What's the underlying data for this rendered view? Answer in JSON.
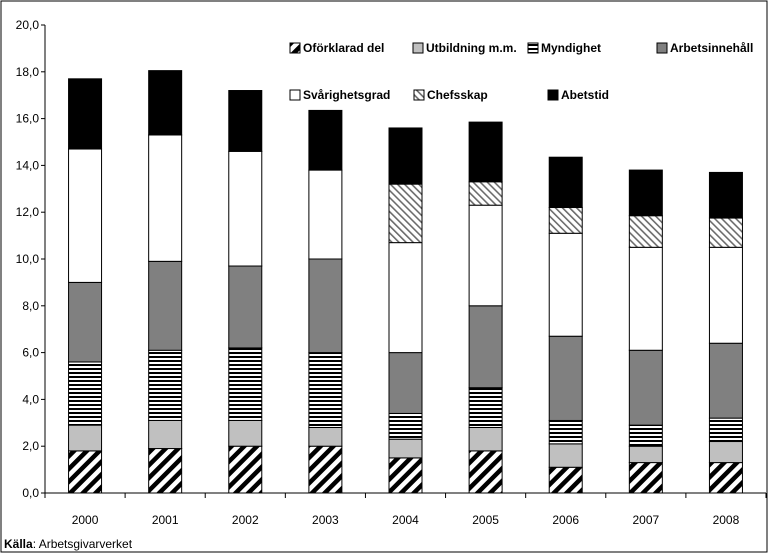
{
  "chart_data": {
    "type": "bar",
    "stacked": true,
    "categories": [
      "2000",
      "2001",
      "2002",
      "2003",
      "2004",
      "2005",
      "2006",
      "2007",
      "2008"
    ],
    "ylim": [
      0,
      20
    ],
    "yticks": [
      "0,0",
      "2,0",
      "4,0",
      "6,0",
      "8,0",
      "10,0",
      "12,0",
      "14,0",
      "16,0",
      "18,0",
      "20,0"
    ],
    "grid": false,
    "legend_position": "top-right",
    "series": [
      {
        "name": "Oförklarad del",
        "pattern": "diag-black",
        "values": [
          1.8,
          1.9,
          2.0,
          2.0,
          1.5,
          1.8,
          1.1,
          1.3,
          1.3
        ]
      },
      {
        "name": "Utbildning m.m.",
        "pattern": "light-gray",
        "values": [
          1.1,
          1.2,
          1.1,
          0.8,
          0.8,
          1.0,
          1.0,
          0.7,
          0.9
        ]
      },
      {
        "name": "Myndighet",
        "pattern": "horizontal-lines",
        "values": [
          2.7,
          3.0,
          3.1,
          3.2,
          1.1,
          1.7,
          1.0,
          0.9,
          1.0
        ]
      },
      {
        "name": "Arbetsinnehåll",
        "pattern": "dark-gray",
        "values": [
          3.4,
          3.8,
          3.5,
          4.0,
          2.6,
          3.5,
          3.6,
          3.2,
          3.2
        ]
      },
      {
        "name": "Svårighetsgrad",
        "pattern": "white",
        "values": [
          5.7,
          5.4,
          4.9,
          3.8,
          4.7,
          4.3,
          4.4,
          4.4,
          4.1
        ]
      },
      {
        "name": "Chefsskap",
        "pattern": "diag-fine",
        "values": [
          0,
          0,
          0,
          0,
          2.5,
          1.0,
          1.1,
          1.35,
          1.25
        ]
      },
      {
        "name": "Abetstid",
        "pattern": "black",
        "values": [
          3.0,
          2.75,
          2.6,
          2.55,
          2.4,
          2.55,
          2.15,
          1.95,
          1.95
        ]
      }
    ],
    "legend_rows": [
      [
        "Oförklarad del",
        "Utbildning m.m.",
        "Myndighet",
        "Arbetsinnehåll"
      ],
      [
        "Svårighetsgrad",
        "Chefsskap",
        "Abetstid"
      ]
    ]
  },
  "source": {
    "label": "Källa",
    "text": ": Arbetsgivarverket"
  }
}
